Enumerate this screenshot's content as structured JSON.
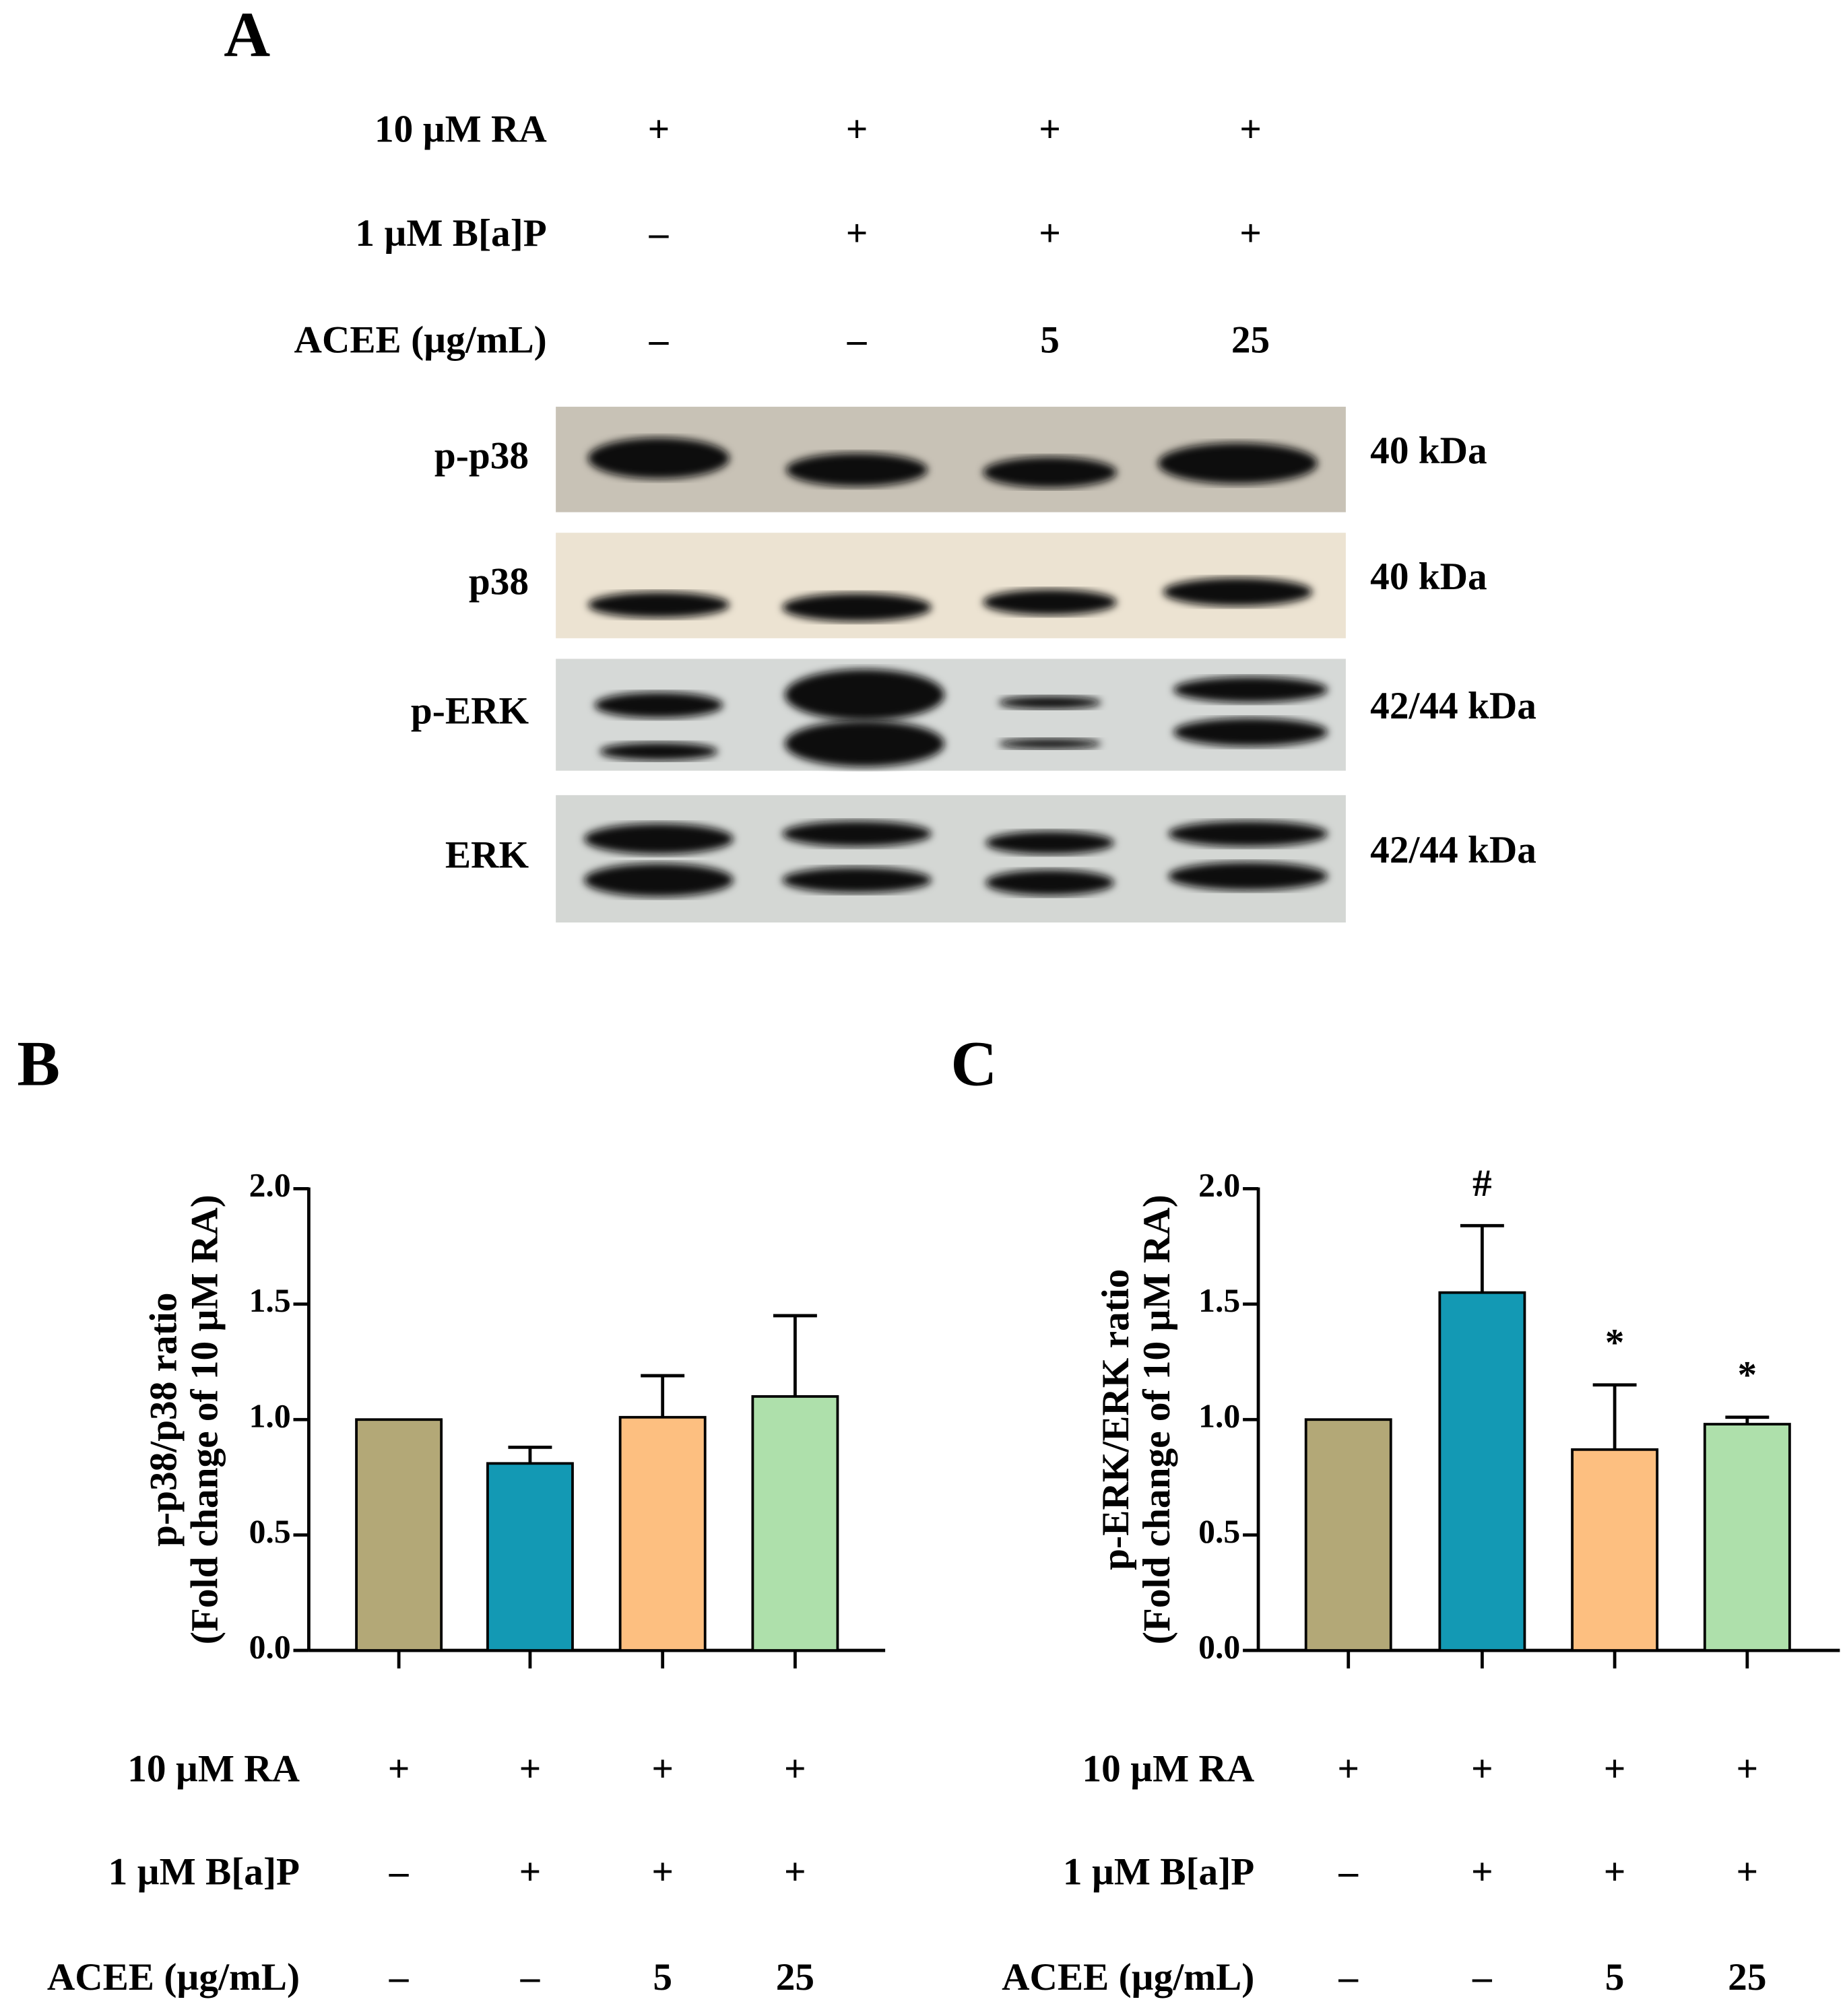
{
  "panel_a": {
    "letter": "A",
    "conditions": [
      {
        "label": "10 µM RA",
        "values": [
          "+",
          "+",
          "+",
          "+"
        ]
      },
      {
        "label": "1 µM B[a]P",
        "values": [
          "–",
          "+",
          "+",
          "+"
        ]
      },
      {
        "label": "ACEE (µg/mL)",
        "values": [
          "–",
          "–",
          "5",
          "25"
        ]
      }
    ],
    "blots": [
      {
        "label": "p-p38",
        "size": "40 kDa"
      },
      {
        "label": "p38",
        "size": "40 kDa"
      },
      {
        "label": "p-ERK",
        "size": "42/44 kDa"
      },
      {
        "label": "ERK",
        "size": "42/44 kDa"
      }
    ]
  },
  "chart_data": [
    {
      "type": "bar",
      "letter": "B",
      "y_label": [
        "p-p38/p38 ratio",
        "(Fold change of 10 µM RA)"
      ],
      "values": [
        1.0,
        0.81,
        1.01,
        1.1
      ],
      "errors": [
        0,
        0.07,
        0.18,
        0.35
      ],
      "annotations": [
        null,
        null,
        null,
        null
      ],
      "colors": [
        "#b3a877",
        "#1399b4",
        "#fdbf80",
        "#aee0ab"
      ],
      "ylim": [
        0,
        2
      ],
      "yticks": [
        {
          "value": 0,
          "label": "0.0"
        },
        {
          "value": 0.5,
          "label": "0.5"
        },
        {
          "value": 1,
          "label": "1.0"
        },
        {
          "value": 1.5,
          "label": "1.5"
        },
        {
          "value": 2,
          "label": "2.0"
        }
      ],
      "conditions": [
        {
          "label": "10 µM RA",
          "values": [
            "+",
            "+",
            "+",
            "+"
          ]
        },
        {
          "label": "1 µM B[a]P",
          "values": [
            "–",
            "+",
            "+",
            "+"
          ]
        },
        {
          "label": "ACEE (µg/mL)",
          "values": [
            "–",
            "–",
            "5",
            "25"
          ]
        }
      ]
    },
    {
      "type": "bar",
      "letter": "C",
      "y_label": [
        "p-ERK/ERK ratio",
        "(Fold change of 10 µM RA)"
      ],
      "values": [
        1.0,
        1.55,
        0.87,
        0.98
      ],
      "errors": [
        0,
        0.29,
        0.28,
        0.03
      ],
      "annotations": [
        null,
        "#",
        "*",
        "*"
      ],
      "colors": [
        "#b3a877",
        "#1399b4",
        "#fdbf80",
        "#aee0ab"
      ],
      "ylim": [
        0,
        2
      ],
      "yticks": [
        {
          "value": 0,
          "label": "0.0"
        },
        {
          "value": 0.5,
          "label": "0.5"
        },
        {
          "value": 1,
          "label": "1.0"
        },
        {
          "value": 1.5,
          "label": "1.5"
        },
        {
          "value": 2,
          "label": "2.0"
        }
      ],
      "conditions": [
        {
          "label": "10 µM RA",
          "values": [
            "+",
            "+",
            "+",
            "+"
          ]
        },
        {
          "label": "1 µM B[a]P",
          "values": [
            "–",
            "+",
            "+",
            "+"
          ]
        },
        {
          "label": "ACEE (µg/mL)",
          "values": [
            "–",
            "–",
            "5",
            "25"
          ]
        }
      ]
    }
  ]
}
